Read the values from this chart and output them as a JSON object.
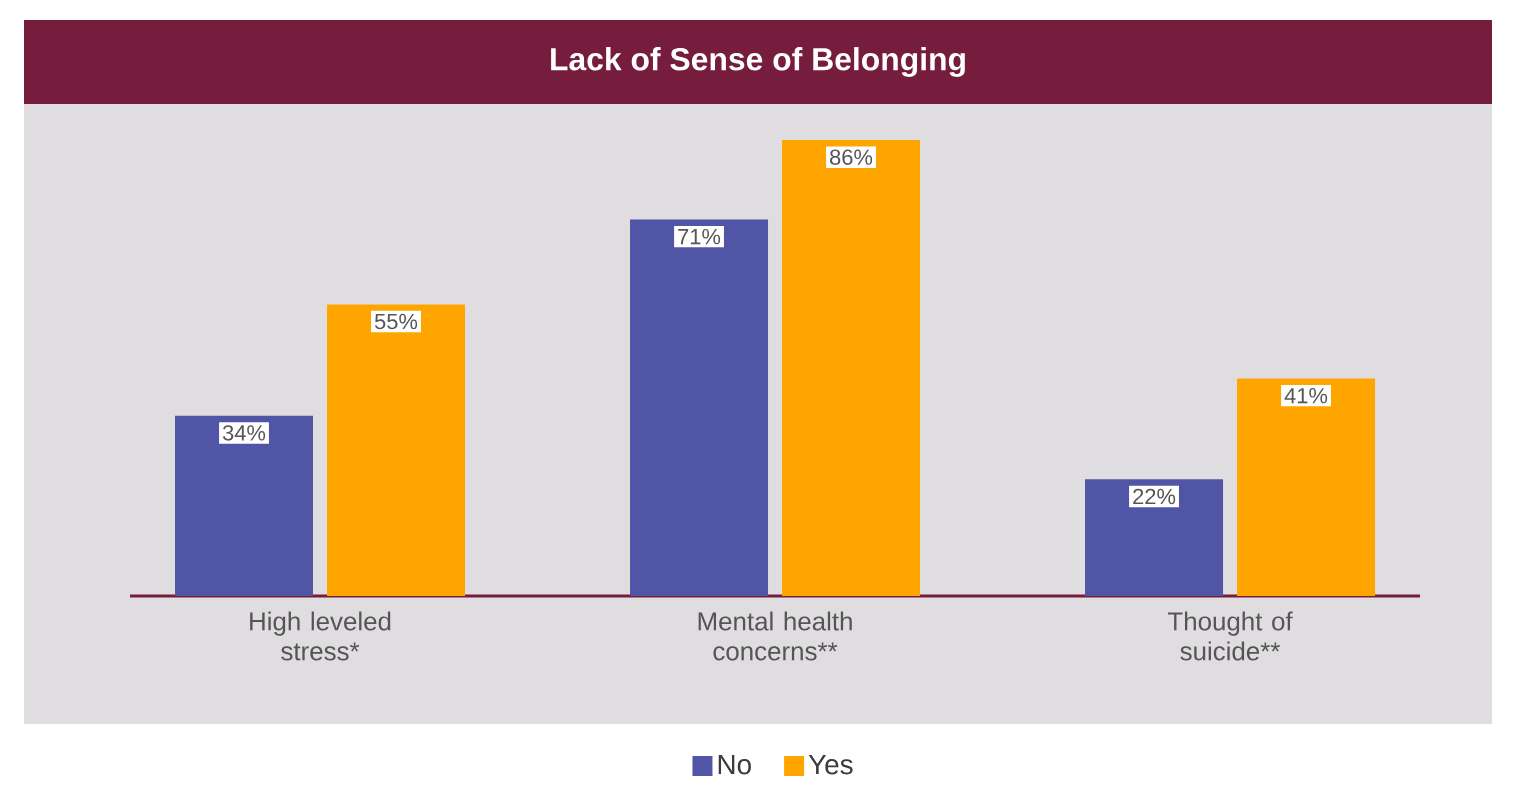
{
  "chart_data": {
    "type": "bar",
    "title": "Lack of Sense of Belonging",
    "categories": [
      "High leveled stress*",
      "Mental health concerns**",
      "Thought of suicide**"
    ],
    "series": [
      {
        "name": "No",
        "color": "#5055a5",
        "values": [
          34,
          71,
          22
        ],
        "value_labels": [
          "34%",
          "71%",
          "22%"
        ]
      },
      {
        "name": "Yes",
        "color": "#fea500",
        "values": [
          55,
          86,
          41
        ],
        "value_labels": [
          "55%",
          "86%",
          "41%"
        ]
      }
    ],
    "ylim": [
      0,
      86
    ],
    "tick_labels": "x",
    "legend": "bottom"
  }
}
